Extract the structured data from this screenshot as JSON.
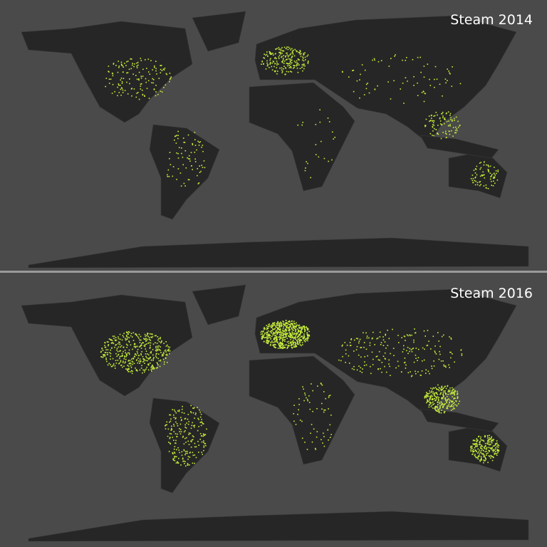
{
  "panels": [
    {
      "title": "Steam 2014"
    },
    {
      "title": "Steam 2016"
    }
  ]
}
